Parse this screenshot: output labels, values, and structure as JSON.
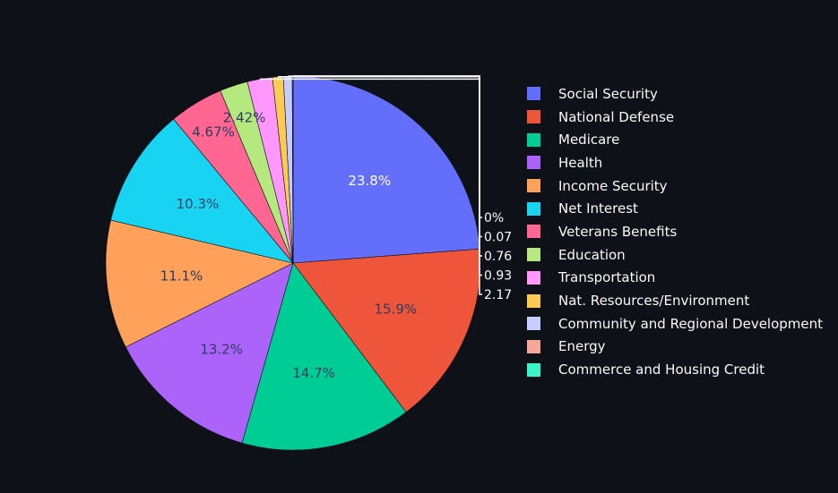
{
  "chart_data": {
    "type": "pie",
    "sort": "descending",
    "direction": "clockwise",
    "slices": [
      {
        "name": "Social Security",
        "percent": 23.8,
        "label": "23.8%",
        "color": "#636efa"
      },
      {
        "name": "National Defense",
        "percent": 15.9,
        "label": "15.9%",
        "color": "#ef553b"
      },
      {
        "name": "Medicare",
        "percent": 14.7,
        "label": "14.7%",
        "color": "#00cc96"
      },
      {
        "name": "Health",
        "percent": 13.2,
        "label": "13.2%",
        "color": "#ab63fa"
      },
      {
        "name": "Income Security",
        "percent": 11.1,
        "label": "11.1%",
        "color": "#ffa15a"
      },
      {
        "name": "Net Interest",
        "percent": 10.3,
        "label": "10.3%",
        "color": "#19d3f3"
      },
      {
        "name": "Veterans Benefits",
        "percent": 4.67,
        "label": "4.67%",
        "color": "#ff6692"
      },
      {
        "name": "Education",
        "percent": 2.42,
        "label": "2.42%",
        "color": "#b6e880"
      },
      {
        "name": "Transportation",
        "percent": 2.17,
        "label": "2.17",
        "color": "#ff97ff"
      },
      {
        "name": "Nat. Resources/Environment",
        "percent": 0.93,
        "label": "0.93",
        "color": "#fecb52"
      },
      {
        "name": "Community and Regional Development",
        "percent": 0.76,
        "label": "0.76",
        "color": "#c6ccfe"
      },
      {
        "name": "Energy",
        "percent": 0.07,
        "label": "0.07",
        "color": "#f5a89a"
      },
      {
        "name": "Commerce and Housing Credit",
        "percent": 0.0,
        "label": "0%",
        "color": "#3cf2c7"
      }
    ],
    "legend_placement": "right"
  }
}
